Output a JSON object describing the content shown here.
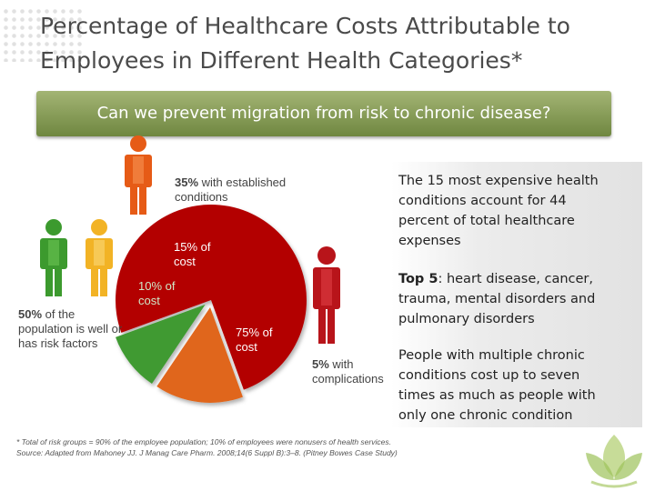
{
  "title": "Percentage of Healthcare Costs Attributable to Employees in Different Health Categories*",
  "banner": "Can we prevent migration from risk to chronic disease?",
  "groups": {
    "established": {
      "pct": "35%",
      "text": " with established conditions"
    },
    "well": {
      "pct": "50%",
      "text": " of the population is well or has risk factors"
    },
    "complications": {
      "pct": "5%",
      "text": " with complications"
    }
  },
  "chart_data": {
    "type": "pie",
    "slices": [
      {
        "label": "75% of cost",
        "value": 75,
        "color": "#b30000"
      },
      {
        "label": "15% of cost",
        "value": 15,
        "color": "#e0661a"
      },
      {
        "label": "10% of cost",
        "value": 10,
        "color": "#3f9a33"
      }
    ]
  },
  "right_panel": {
    "p1": "The 15 most expensive health conditions account for 44 percent of total healthcare expenses",
    "p2_bold": "Top 5",
    "p2_rest": ": heart disease, cancer, trauma, mental disorders and pulmonary disorders",
    "p3": "People with multiple chronic conditions cost up to seven times as much as people with only one chronic condition"
  },
  "footnote": {
    "line1": "* Total of risk groups = 90% of the employee population; 10% of employees were nonusers of health services.",
    "line2": "Source: Adapted from Mahoney JJ. J Manag Care Pharm. 2008;14(6 Suppl B):3–8. (Pitney Bowes Case Study)"
  },
  "colors": {
    "green_person": "#3c9a2e",
    "yellow_person": "#f2b325",
    "orange_person": "#e65b16",
    "red_person": "#b8141a",
    "banner": "#82994f"
  }
}
